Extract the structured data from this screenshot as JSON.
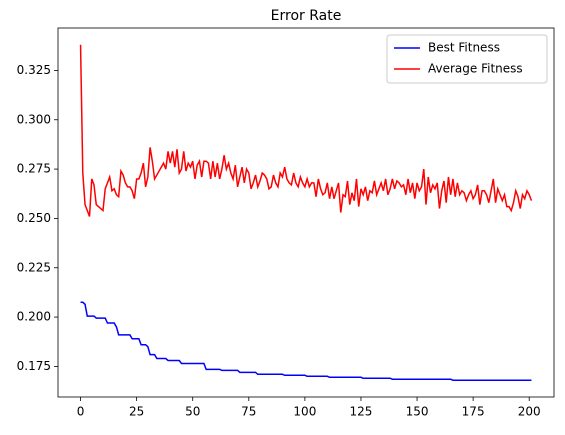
{
  "chart_data": {
    "type": "line",
    "title": "Error Rate",
    "x": [
      0,
      1,
      2,
      3,
      4,
      5,
      6,
      7,
      8,
      9,
      10,
      11,
      12,
      13,
      14,
      15,
      16,
      17,
      18,
      19,
      20,
      21,
      22,
      23,
      24,
      25,
      26,
      27,
      28,
      29,
      30,
      31,
      32,
      33,
      34,
      35,
      36,
      37,
      38,
      39,
      40,
      41,
      42,
      43,
      44,
      45,
      46,
      47,
      48,
      49,
      50,
      51,
      52,
      53,
      54,
      55,
      56,
      57,
      58,
      59,
      60,
      61,
      62,
      63,
      64,
      65,
      66,
      67,
      68,
      69,
      70,
      71,
      72,
      73,
      74,
      75,
      76,
      77,
      78,
      79,
      80,
      81,
      82,
      83,
      84,
      85,
      86,
      87,
      88,
      89,
      90,
      91,
      92,
      93,
      94,
      95,
      96,
      97,
      98,
      99,
      100,
      101,
      102,
      103,
      104,
      105,
      106,
      107,
      108,
      109,
      110,
      111,
      112,
      113,
      114,
      115,
      116,
      117,
      118,
      119,
      120,
      121,
      122,
      123,
      124,
      125,
      126,
      127,
      128,
      129,
      130,
      131,
      132,
      133,
      134,
      135,
      136,
      137,
      138,
      139,
      140,
      141,
      142,
      143,
      144,
      145,
      146,
      147,
      148,
      149,
      150,
      151,
      152,
      153,
      154,
      155,
      156,
      157,
      158,
      159,
      160,
      161,
      162,
      163,
      164,
      165,
      166,
      167,
      168,
      169,
      170,
      171,
      172,
      173,
      174,
      175,
      176,
      177,
      178,
      179,
      180,
      181,
      182,
      183,
      184,
      185,
      186,
      187,
      188,
      189,
      190,
      191,
      192,
      193,
      194,
      195,
      196,
      197,
      198,
      199,
      200,
      201
    ],
    "series": [
      {
        "name": "Best Fitness",
        "color": "#0000ff",
        "values": [
          0.2075,
          0.2075,
          0.2065,
          0.2005,
          0.2005,
          0.2005,
          0.2005,
          0.1995,
          0.1995,
          0.1995,
          0.1995,
          0.1995,
          0.197,
          0.197,
          0.197,
          0.197,
          0.195,
          0.191,
          0.191,
          0.191,
          0.191,
          0.191,
          0.191,
          0.189,
          0.189,
          0.189,
          0.189,
          0.186,
          0.186,
          0.186,
          0.185,
          0.181,
          0.181,
          0.181,
          0.179,
          0.179,
          0.179,
          0.179,
          0.179,
          0.178,
          0.178,
          0.178,
          0.178,
          0.178,
          0.178,
          0.1765,
          0.1765,
          0.1765,
          0.1765,
          0.1765,
          0.1765,
          0.1765,
          0.1765,
          0.1765,
          0.1765,
          0.1765,
          0.1735,
          0.1735,
          0.1735,
          0.1735,
          0.1735,
          0.1735,
          0.1735,
          0.173,
          0.173,
          0.173,
          0.173,
          0.173,
          0.173,
          0.173,
          0.173,
          0.172,
          0.172,
          0.172,
          0.172,
          0.172,
          0.172,
          0.172,
          0.172,
          0.171,
          0.171,
          0.171,
          0.171,
          0.171,
          0.171,
          0.171,
          0.171,
          0.171,
          0.171,
          0.171,
          0.171,
          0.1705,
          0.1705,
          0.1705,
          0.1705,
          0.1705,
          0.1705,
          0.1705,
          0.1705,
          0.1705,
          0.1705,
          0.17,
          0.17,
          0.17,
          0.17,
          0.17,
          0.17,
          0.17,
          0.17,
          0.17,
          0.17,
          0.1695,
          0.1695,
          0.1695,
          0.1695,
          0.1695,
          0.1695,
          0.1695,
          0.1695,
          0.1695,
          0.1695,
          0.1695,
          0.1695,
          0.1695,
          0.1695,
          0.1695,
          0.169,
          0.169,
          0.169,
          0.169,
          0.169,
          0.169,
          0.169,
          0.169,
          0.169,
          0.169,
          0.169,
          0.169,
          0.169,
          0.1685,
          0.1685,
          0.1685,
          0.1685,
          0.1685,
          0.1685,
          0.1685,
          0.1685,
          0.1685,
          0.1685,
          0.1685,
          0.1685,
          0.1685,
          0.1685,
          0.1685,
          0.1685,
          0.1685,
          0.1685,
          0.1685,
          0.1685,
          0.1685,
          0.1685,
          0.1685,
          0.1685,
          0.1685,
          0.1685,
          0.1685,
          0.168,
          0.168,
          0.168,
          0.168,
          0.168,
          0.168,
          0.168,
          0.168,
          0.168,
          0.168,
          0.168,
          0.168,
          0.168,
          0.168,
          0.168,
          0.168,
          0.168,
          0.168,
          0.168,
          0.168,
          0.168,
          0.168,
          0.168,
          0.168,
          0.168,
          0.168,
          0.168,
          0.168,
          0.168,
          0.168,
          0.168,
          0.168,
          0.168,
          0.168,
          0.168,
          0.168
        ]
      },
      {
        "name": "Average Fitness",
        "color": "#ff0000",
        "values": [
          0.338,
          0.273,
          0.257,
          0.254,
          0.251,
          0.27,
          0.267,
          0.257,
          0.256,
          0.255,
          0.254,
          0.265,
          0.268,
          0.271,
          0.264,
          0.265,
          0.262,
          0.261,
          0.274,
          0.272,
          0.268,
          0.266,
          0.266,
          0.264,
          0.26,
          0.27,
          0.27,
          0.273,
          0.278,
          0.266,
          0.271,
          0.286,
          0.279,
          0.27,
          0.272,
          0.274,
          0.276,
          0.278,
          0.275,
          0.284,
          0.278,
          0.284,
          0.276,
          0.285,
          0.273,
          0.275,
          0.284,
          0.274,
          0.278,
          0.276,
          0.279,
          0.27,
          0.277,
          0.279,
          0.271,
          0.279,
          0.279,
          0.278,
          0.27,
          0.279,
          0.271,
          0.278,
          0.27,
          0.275,
          0.282,
          0.275,
          0.278,
          0.273,
          0.27,
          0.277,
          0.266,
          0.271,
          0.276,
          0.268,
          0.275,
          0.273,
          0.265,
          0.268,
          0.272,
          0.266,
          0.269,
          0.273,
          0.272,
          0.27,
          0.265,
          0.266,
          0.272,
          0.268,
          0.266,
          0.273,
          0.271,
          0.276,
          0.27,
          0.268,
          0.267,
          0.273,
          0.268,
          0.266,
          0.271,
          0.268,
          0.266,
          0.27,
          0.266,
          0.268,
          0.268,
          0.261,
          0.27,
          0.265,
          0.262,
          0.263,
          0.268,
          0.26,
          0.266,
          0.26,
          0.264,
          0.268,
          0.253,
          0.262,
          0.261,
          0.269,
          0.257,
          0.263,
          0.259,
          0.27,
          0.256,
          0.265,
          0.262,
          0.266,
          0.259,
          0.264,
          0.263,
          0.269,
          0.262,
          0.265,
          0.268,
          0.264,
          0.27,
          0.262,
          0.265,
          0.27,
          0.265,
          0.269,
          0.268,
          0.266,
          0.267,
          0.262,
          0.27,
          0.263,
          0.268,
          0.26,
          0.268,
          0.264,
          0.266,
          0.275,
          0.257,
          0.271,
          0.263,
          0.267,
          0.265,
          0.268,
          0.255,
          0.264,
          0.269,
          0.258,
          0.271,
          0.262,
          0.27,
          0.261,
          0.268,
          0.262,
          0.264,
          0.263,
          0.259,
          0.262,
          0.264,
          0.26,
          0.262,
          0.267,
          0.257,
          0.264,
          0.264,
          0.262,
          0.258,
          0.264,
          0.27,
          0.258,
          0.265,
          0.262,
          0.259,
          0.262,
          0.256,
          0.256,
          0.254,
          0.258,
          0.264,
          0.261,
          0.255,
          0.262,
          0.26,
          0.264,
          0.262,
          0.259
        ]
      }
    ],
    "xlim": [
      -10.05,
      211.05
    ],
    "xticks": [
      0,
      25,
      50,
      75,
      100,
      125,
      150,
      175,
      200
    ],
    "ylim": [
      0.1595,
      0.3465
    ],
    "yticks": [
      0.175,
      {
        "value": 0.2,
        "label": "0.200"
      },
      0.225,
      {
        "value": 0.25,
        "label": "0.250"
      },
      0.275,
      {
        "value": 0.3,
        "label": "0.300"
      },
      0.325
    ],
    "legend": "upper right"
  }
}
